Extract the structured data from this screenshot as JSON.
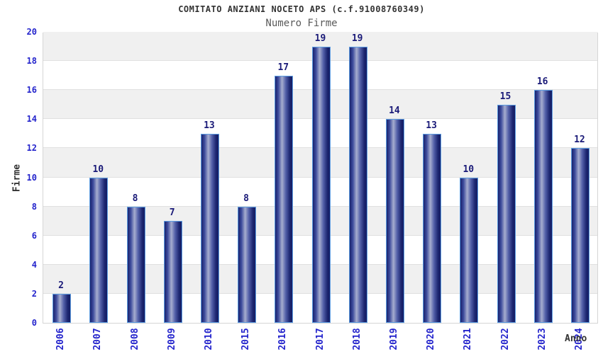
{
  "header": {
    "title": "COMITATO ANZIANI NOCETO APS (c.f.91008760349)",
    "subtitle": "Numero Firme"
  },
  "axes": {
    "y_label": "Firme",
    "x_label": "Anno"
  },
  "colors": {
    "tick_label_blue": "#2424cc",
    "data_label_navy": "#1a1a78",
    "bar_border_lightblue": "#5d9de2",
    "bar_dark_navy": "#19236e",
    "bar_highlight": "#a6adcf",
    "band_gray": "#f0f0f0",
    "grid_gray": "#e0e0e0",
    "title_gray": "#333333",
    "subtitle_gray": "#5a5a5a"
  },
  "chart_data": {
    "type": "bar",
    "title": "COMITATO ANZIANI NOCETO APS (c.f.91008760349)",
    "subtitle": "Numero Firme",
    "categories": [
      "2006",
      "2007",
      "2008",
      "2009",
      "2010",
      "2015",
      "2016",
      "2017",
      "2018",
      "2019",
      "2020",
      "2021",
      "2022",
      "2023",
      "2024"
    ],
    "values": [
      2,
      10,
      8,
      7,
      13,
      8,
      17,
      19,
      19,
      14,
      13,
      10,
      15,
      16,
      12
    ],
    "xlabel": "Anno",
    "ylabel": "Firme",
    "ylim": [
      0,
      20
    ],
    "ytick_step": 2,
    "grid": true,
    "background_bands": "alternating white/gray every 2 units",
    "legend": "none"
  }
}
